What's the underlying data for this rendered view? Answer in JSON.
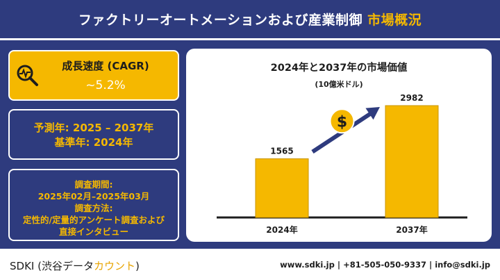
{
  "header": {
    "title_main": "ファクトリーオートメーションおよび産業制御",
    "title_highlight": "市場概況"
  },
  "colors": {
    "navy": "#2e3b7e",
    "gold": "#f5b800",
    "arrow": "#2e3b7e"
  },
  "panels": {
    "cagr_label": "成長速度 (CAGR)",
    "cagr_value": "~5.2%",
    "cagr_icon": "magnifier-chart-icon",
    "forecast_line": "予測年: 2025 – 2037年",
    "base_line": "基準年: 2024年",
    "survey_period_label": "調査期間:",
    "survey_period_value": "2025年02月–2025年03月",
    "survey_method_label": "調査方法:",
    "survey_method_line1": "定性的/定量的アンケート調査および",
    "survey_method_line2": "直接インタビュー"
  },
  "chart_data": {
    "type": "bar",
    "title": "2024年と2037年の市場価値",
    "subtitle": "(10億米ドル)",
    "categories": [
      "2024年",
      "2037年"
    ],
    "values": [
      1565,
      2982
    ],
    "value_labels": [
      "1565",
      "2982"
    ],
    "bar_color": "#f5b800",
    "growth_icon": "dollar-coin-icon",
    "grid": false
  },
  "footer": {
    "brand_main": "SDKI (渋谷データ",
    "brand_accent": "カウント",
    "brand_end": ")",
    "contact": "www.sdki.jp  |  +81-505-050-9337  |  info@sdki.jp"
  }
}
